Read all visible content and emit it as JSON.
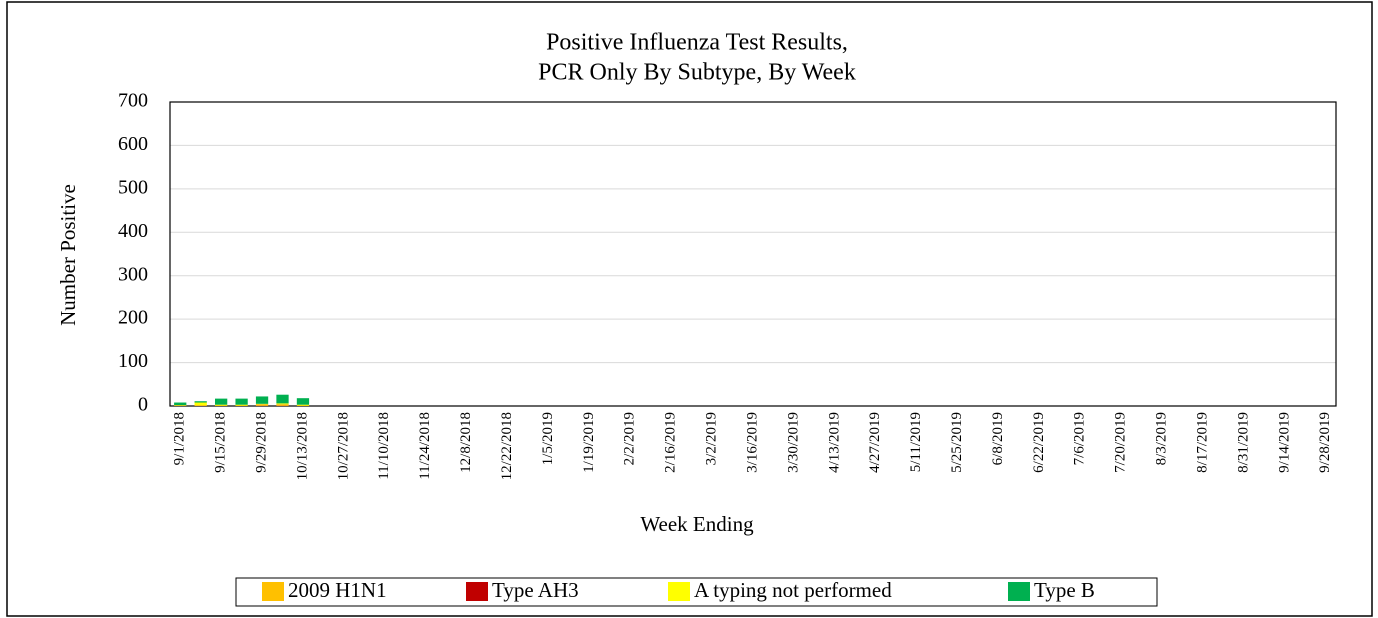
{
  "chart_data": {
    "type": "stacked-bar",
    "title": [
      "Positive Influenza Test Results,",
      "PCR Only By Subtype, By Week"
    ],
    "x_label": "Week Ending",
    "y_label": "Number Positive",
    "categories": [
      "9/1/2018",
      null,
      "9/15/2018",
      null,
      "9/29/2018",
      null,
      "10/13/2018",
      null,
      "10/27/2018",
      null,
      "11/10/2018",
      null,
      "11/24/2018",
      null,
      "12/8/2018",
      null,
      "12/22/2018",
      null,
      "1/5/2019",
      null,
      "1/19/2019",
      null,
      "2/2/2019",
      null,
      "2/16/2019",
      null,
      "3/2/2019",
      null,
      "3/16/2019",
      null,
      "3/30/2019",
      null,
      "4/13/2019",
      null,
      "4/27/2019",
      null,
      "5/11/2019",
      null,
      "5/25/2019",
      null,
      "6/8/2019",
      null,
      "6/22/2019",
      null,
      "7/6/2019",
      null,
      "7/20/2019",
      null,
      "8/3/2019",
      null,
      "8/17/2019",
      null,
      "8/31/2019",
      null,
      "9/14/2019",
      null,
      "9/28/2019"
    ],
    "series": [
      {
        "name": "2009 H1N1",
        "color": "#FFC000",
        "values": [
          1,
          2,
          1,
          1,
          2,
          2,
          1,
          0,
          0,
          0,
          0,
          0,
          0,
          0,
          0,
          0,
          0,
          0,
          0,
          0,
          0,
          0,
          0,
          0,
          0,
          0,
          0,
          0,
          0,
          0,
          0,
          0,
          0,
          0,
          0,
          0,
          0,
          0,
          0,
          0,
          0,
          0,
          0,
          0,
          0,
          0,
          0,
          0,
          0,
          0,
          0,
          0,
          0,
          0,
          0,
          0,
          0
        ]
      },
      {
        "name": "Type AH3",
        "color": "#C00000",
        "values": [
          0,
          0,
          0,
          0,
          1,
          1,
          0,
          0,
          0,
          0,
          0,
          0,
          0,
          0,
          0,
          0,
          0,
          0,
          0,
          0,
          0,
          0,
          0,
          0,
          0,
          0,
          0,
          0,
          0,
          0,
          0,
          0,
          0,
          0,
          0,
          0,
          0,
          0,
          0,
          0,
          0,
          0,
          0,
          0,
          0,
          0,
          0,
          0,
          0,
          0,
          0,
          0,
          0,
          0,
          0,
          0,
          0
        ]
      },
      {
        "name": "A typing not performed",
        "color": "#FFFF00",
        "values": [
          1,
          6,
          2,
          2,
          2,
          3,
          2,
          0,
          0,
          0,
          0,
          0,
          0,
          0,
          0,
          0,
          0,
          0,
          0,
          0,
          0,
          0,
          0,
          0,
          0,
          0,
          0,
          0,
          0,
          0,
          0,
          0,
          0,
          0,
          0,
          0,
          0,
          0,
          0,
          0,
          0,
          0,
          0,
          0,
          0,
          0,
          0,
          0,
          0,
          0,
          0,
          0,
          0,
          0,
          0,
          0,
          0
        ]
      },
      {
        "name": "Type B",
        "color": "#00B050",
        "values": [
          6,
          3,
          14,
          14,
          17,
          20,
          15,
          0,
          0,
          0,
          0,
          0,
          0,
          0,
          0,
          0,
          0,
          0,
          0,
          0,
          0,
          0,
          0,
          0,
          0,
          0,
          0,
          0,
          0,
          0,
          0,
          0,
          0,
          0,
          0,
          0,
          0,
          0,
          0,
          0,
          0,
          0,
          0,
          0,
          0,
          0,
          0,
          0,
          0,
          0,
          0,
          0,
          0,
          0,
          0,
          0,
          0
        ]
      }
    ],
    "ylim": [
      0,
      700
    ],
    "yticks": [
      0,
      100,
      200,
      300,
      400,
      500,
      600,
      700
    ],
    "grid": true,
    "legend": "bottom"
  }
}
